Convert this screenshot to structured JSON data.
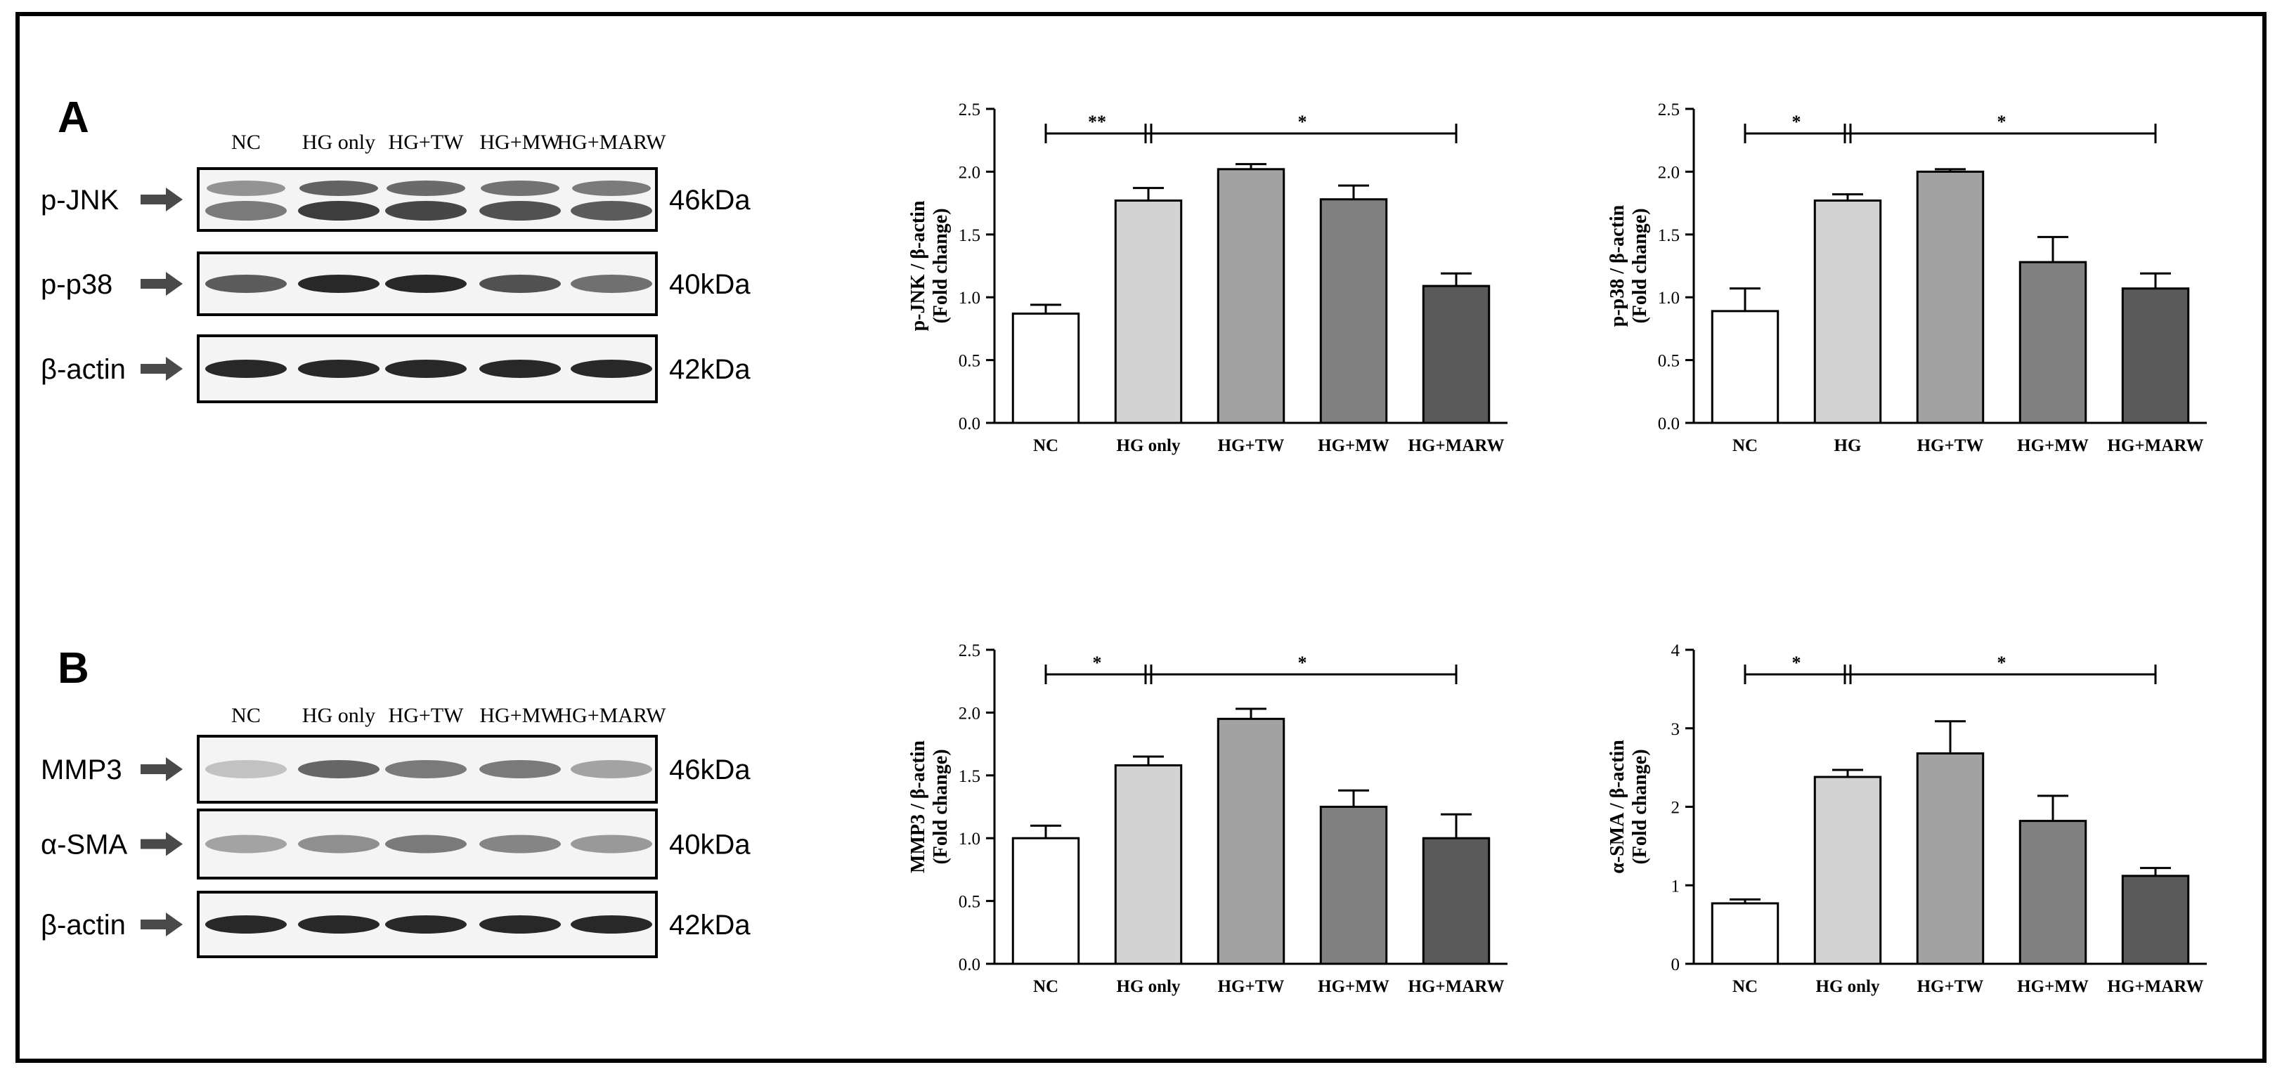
{
  "panels": [
    {
      "letter": "A",
      "lanes": [
        "NC",
        "HG only",
        "HG+TW",
        "HG+MW",
        "HG+MARW"
      ],
      "blots": [
        {
          "label": "p-JNK",
          "kda": "46kDa",
          "double": true,
          "intensity": [
            0.55,
            0.85,
            0.8,
            0.75,
            0.7
          ]
        },
        {
          "label": "p-p38",
          "kda": "40kDa",
          "double": false,
          "intensity": [
            0.7,
            0.95,
            0.95,
            0.75,
            0.6
          ]
        },
        {
          "label": "β-actin",
          "kda": "42kDa",
          "double": false,
          "intensity": [
            0.95,
            0.95,
            0.95,
            0.95,
            0.95
          ]
        }
      ]
    },
    {
      "letter": "B",
      "lanes": [
        "NC",
        "HG only",
        "HG+TW",
        "HG+MW",
        "HG+MARW"
      ],
      "blots": [
        {
          "label": "MMP3",
          "kda": "46kDa",
          "double": false,
          "intensity": [
            0.2,
            0.65,
            0.55,
            0.55,
            0.35
          ]
        },
        {
          "label": "α-SMA",
          "kda": "40kDa",
          "double": false,
          "intensity": [
            0.35,
            0.45,
            0.55,
            0.5,
            0.4
          ]
        },
        {
          "label": "β-actin",
          "kda": "42kDa",
          "double": false,
          "intensity": [
            0.95,
            0.95,
            0.95,
            0.95,
            0.95
          ]
        }
      ]
    }
  ],
  "chart_data": [
    {
      "type": "bar",
      "categories": [
        "NC",
        "HG only",
        "HG+TW",
        "HG+MW",
        "HG+MARW"
      ],
      "values": [
        0.87,
        1.77,
        2.02,
        1.78,
        1.09
      ],
      "errors": [
        0.07,
        0.1,
        0.04,
        0.11,
        0.1
      ],
      "ylabel_line1": "p-JNK / β-actin",
      "ylabel_line2": "(Fold change)",
      "ylim": [
        0,
        2.5
      ],
      "yticks": [
        "0.0",
        "0.5",
        "1.0",
        "1.5",
        "2.0",
        "2.5"
      ],
      "colors": [
        "#ffffff",
        "#d3d3d3",
        "#a2a2a2",
        "#808080",
        "#5a5a5a"
      ],
      "significance": [
        "**",
        "*"
      ]
    },
    {
      "type": "bar",
      "categories": [
        "NC",
        "HG",
        "HG+TW",
        "HG+MW",
        "HG+MARW"
      ],
      "values": [
        0.89,
        1.77,
        2.0,
        1.28,
        1.07
      ],
      "errors": [
        0.18,
        0.05,
        0.02,
        0.2,
        0.12
      ],
      "ylabel_line1": "p-p38 / β-actin",
      "ylabel_line2": "(Fold change)",
      "ylim": [
        0,
        2.5
      ],
      "yticks": [
        "0.0",
        "0.5",
        "1.0",
        "1.5",
        "2.0",
        "2.5"
      ],
      "colors": [
        "#ffffff",
        "#d3d3d3",
        "#a2a2a2",
        "#808080",
        "#5a5a5a"
      ],
      "significance": [
        "*",
        "*"
      ]
    },
    {
      "type": "bar",
      "categories": [
        "NC",
        "HG only",
        "HG+TW",
        "HG+MW",
        "HG+MARW"
      ],
      "values": [
        1.0,
        1.58,
        1.95,
        1.25,
        1.0
      ],
      "errors": [
        0.1,
        0.07,
        0.08,
        0.13,
        0.19
      ],
      "ylabel_line1": "MMP3 / β-actin",
      "ylabel_line2": "(Fold change)",
      "ylim": [
        0,
        2.5
      ],
      "yticks": [
        "0.0",
        "0.5",
        "1.0",
        "1.5",
        "2.0",
        "2.5"
      ],
      "colors": [
        "#ffffff",
        "#d3d3d3",
        "#a2a2a2",
        "#808080",
        "#5a5a5a"
      ],
      "significance": [
        "*",
        "*"
      ]
    },
    {
      "type": "bar",
      "categories": [
        "NC",
        "HG only",
        "HG+TW",
        "HG+MW",
        "HG+MARW"
      ],
      "values": [
        0.77,
        2.38,
        2.68,
        1.82,
        1.12
      ],
      "errors": [
        0.05,
        0.09,
        0.41,
        0.32,
        0.1
      ],
      "ylabel_line1": "α-SMA / β-actin",
      "ylabel_line2": "(Fold change)",
      "ylim": [
        0,
        4
      ],
      "yticks": [
        "0",
        "1",
        "2",
        "3",
        "4"
      ],
      "colors": [
        "#ffffff",
        "#d3d3d3",
        "#a2a2a2",
        "#808080",
        "#5a5a5a"
      ],
      "significance": [
        "*",
        "*"
      ]
    }
  ]
}
